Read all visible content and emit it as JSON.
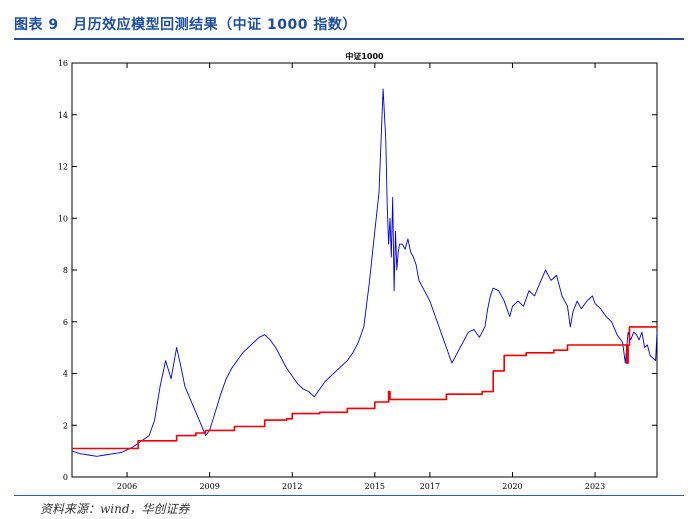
{
  "figure": {
    "caption": "图表 9　月历效应模型回测结果（中证 1000 指数）",
    "source": "资料来源：wind，华创证券"
  },
  "chart_data": {
    "type": "line",
    "title": "中证1000",
    "xlabel": "",
    "ylabel": "",
    "x_range": [
      2004.0,
      2025.25
    ],
    "ylim": [
      0,
      16
    ],
    "y_ticks": [
      0,
      2,
      4,
      6,
      8,
      10,
      12,
      14,
      16
    ],
    "x_ticks": [
      {
        "label": "2006",
        "x": 2006.0
      },
      {
        "label": "2009",
        "x": 2009.0
      },
      {
        "label": "2012",
        "x": 2012.0
      },
      {
        "label": "2015",
        "x": 2015.0
      },
      {
        "label": "2017",
        "x": 2017.0
      },
      {
        "label": "2020",
        "x": 2020.0
      },
      {
        "label": "2023",
        "x": 2023.0
      }
    ],
    "grid": false,
    "legend": "none",
    "series": [
      {
        "color": "#0000dd",
        "x": [
          2004.0,
          2004.3,
          2004.6,
          2004.9,
          2005.2,
          2005.5,
          2005.8,
          2006.0,
          2006.2,
          2006.4,
          2006.6,
          2006.8,
          2007.0,
          2007.2,
          2007.4,
          2007.6,
          2007.8,
          2007.95,
          2008.1,
          2008.3,
          2008.5,
          2008.7,
          2008.85,
          2009.0,
          2009.2,
          2009.4,
          2009.6,
          2009.8,
          2010.0,
          2010.2,
          2010.4,
          2010.6,
          2010.8,
          2011.0,
          2011.2,
          2011.4,
          2011.6,
          2011.8,
          2012.0,
          2012.2,
          2012.4,
          2012.6,
          2012.8,
          2013.0,
          2013.2,
          2013.4,
          2013.6,
          2013.8,
          2014.0,
          2014.2,
          2014.4,
          2014.6,
          2014.8,
          2015.0,
          2015.15,
          2015.3,
          2015.4,
          2015.45,
          2015.5,
          2015.55,
          2015.6,
          2015.65,
          2015.7,
          2015.75,
          2015.8,
          2015.85,
          2015.9,
          2016.0,
          2016.1,
          2016.2,
          2016.3,
          2016.4,
          2016.5,
          2016.6,
          2016.8,
          2017.0,
          2017.2,
          2017.4,
          2017.6,
          2017.8,
          2018.0,
          2018.2,
          2018.4,
          2018.6,
          2018.8,
          2019.0,
          2019.1,
          2019.2,
          2019.3,
          2019.5,
          2019.7,
          2019.9,
          2020.0,
          2020.2,
          2020.4,
          2020.6,
          2020.8,
          2021.0,
          2021.2,
          2021.4,
          2021.6,
          2021.8,
          2022.0,
          2022.1,
          2022.2,
          2022.35,
          2022.5,
          2022.7,
          2022.9,
          2023.0,
          2023.2,
          2023.4,
          2023.6,
          2023.8,
          2024.0,
          2024.1,
          2024.2,
          2024.3,
          2024.4,
          2024.5,
          2024.6,
          2024.7,
          2024.8,
          2024.9,
          2025.0,
          2025.1,
          2025.2,
          2025.25
        ],
        "y": [
          1.0,
          0.9,
          0.85,
          0.8,
          0.85,
          0.9,
          0.95,
          1.05,
          1.15,
          1.3,
          1.45,
          1.6,
          2.2,
          3.5,
          4.5,
          3.8,
          5.0,
          4.3,
          3.5,
          3.0,
          2.5,
          2.0,
          1.6,
          1.8,
          2.5,
          3.2,
          3.8,
          4.2,
          4.5,
          4.8,
          5.0,
          5.2,
          5.4,
          5.5,
          5.3,
          5.0,
          4.6,
          4.2,
          3.9,
          3.6,
          3.4,
          3.3,
          3.1,
          3.4,
          3.7,
          3.9,
          4.1,
          4.3,
          4.5,
          4.8,
          5.2,
          5.8,
          7.5,
          9.5,
          11.0,
          15.0,
          13.0,
          10.5,
          9.0,
          10.0,
          8.5,
          10.8,
          7.2,
          9.5,
          8.0,
          8.7,
          9.0,
          9.0,
          8.8,
          9.2,
          8.7,
          8.5,
          8.2,
          7.6,
          7.2,
          6.8,
          6.2,
          5.6,
          5.0,
          4.4,
          4.8,
          5.2,
          5.6,
          5.7,
          5.4,
          5.8,
          6.5,
          7.0,
          7.3,
          7.2,
          6.8,
          6.2,
          6.6,
          6.8,
          6.6,
          7.2,
          7.0,
          7.5,
          8.0,
          7.6,
          7.8,
          7.0,
          6.6,
          5.8,
          6.4,
          6.8,
          6.5,
          6.8,
          7.0,
          6.7,
          6.5,
          6.2,
          6.0,
          5.5,
          5.2,
          4.4,
          5.6,
          5.3,
          5.6,
          5.5,
          5.3,
          5.6,
          5.0,
          5.1,
          4.7,
          4.6,
          4.5,
          5.6
        ]
      },
      {
        "color": "#ee0000",
        "x": [
          2004.0,
          2006.0,
          2006.4,
          2007.4,
          2007.8,
          2008.5,
          2008.85,
          2009.5,
          2009.9,
          2010.6,
          2011.0,
          2011.8,
          2012.0,
          2012.5,
          2013.0,
          2013.6,
          2014.0,
          2014.7,
          2015.0,
          2015.45,
          2015.5,
          2015.55,
          2016.0,
          2016.6,
          2017.0,
          2017.3,
          2017.6,
          2017.8,
          2018.4,
          2018.9,
          2019.3,
          2019.7,
          2020.0,
          2020.5,
          2021.0,
          2021.5,
          2022.0,
          2022.5,
          2023.0,
          2023.5,
          2024.0,
          2024.15,
          2024.2,
          2024.25,
          2024.3,
          2025.0,
          2025.25
        ],
        "y": [
          1.1,
          1.1,
          1.4,
          1.4,
          1.6,
          1.7,
          1.8,
          1.8,
          1.95,
          1.95,
          2.2,
          2.25,
          2.45,
          2.45,
          2.5,
          2.5,
          2.65,
          2.65,
          2.9,
          2.9,
          3.3,
          3.0,
          3.0,
          3.0,
          3.0,
          3.0,
          3.2,
          3.2,
          3.2,
          3.3,
          4.1,
          4.7,
          4.7,
          4.8,
          4.8,
          4.9,
          5.1,
          5.1,
          5.1,
          5.1,
          5.1,
          4.4,
          5.1,
          5.8,
          5.8,
          5.8,
          5.8
        ]
      }
    ]
  }
}
